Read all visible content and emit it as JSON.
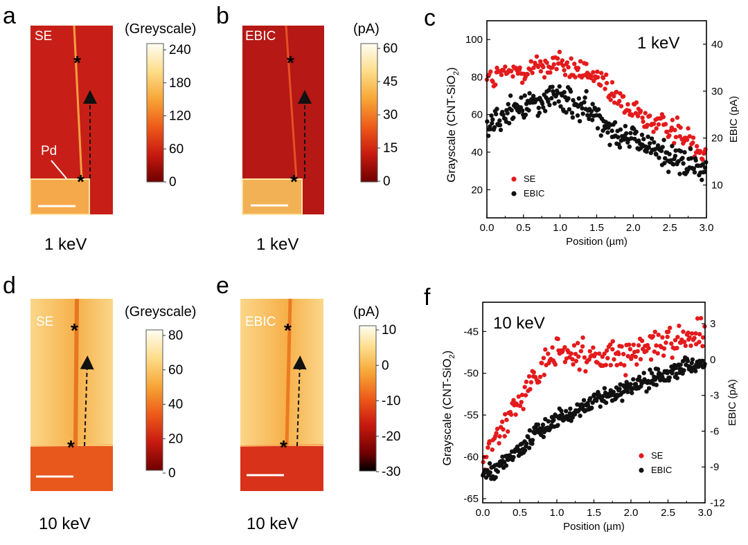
{
  "figure": {
    "panels": [
      {
        "id": "a",
        "letter": "a",
        "image_label": "SE",
        "energy": "1 keV",
        "colorbar_title": "(Greyscale)",
        "colorbar_ticks": [
          "240",
          "180",
          "120",
          "60",
          "0"
        ],
        "annotation": "Pd",
        "colorbar_colors": [
          "#6e0000",
          "#c81a10",
          "#ee5b1a",
          "#f7a636",
          "#fddd8a",
          "#fffdf3"
        ],
        "image_bg": "#c71f17"
      },
      {
        "id": "b",
        "letter": "b",
        "image_label": "EBIC",
        "energy": "1 keV",
        "colorbar_title": "(pA)",
        "colorbar_ticks": [
          "60",
          "45",
          "30",
          "15",
          "0"
        ],
        "colorbar_colors": [
          "#6e0000",
          "#c81a10",
          "#ee5b1a",
          "#f7a636",
          "#fddd8a",
          "#fffdf3"
        ],
        "image_bg": "#b51815"
      },
      {
        "id": "d",
        "letter": "d",
        "image_label": "SE",
        "energy": "10 keV",
        "colorbar_title": "(Greyscale)",
        "colorbar_ticks": [
          "80",
          "60",
          "40",
          "20",
          "0"
        ],
        "colorbar_colors": [
          "#6e0000",
          "#c81a10",
          "#ee5b1a",
          "#f7a636",
          "#fddd8a",
          "#fffdf3"
        ],
        "image_bg": "#f7b44a"
      },
      {
        "id": "e",
        "letter": "e",
        "image_label": "EBIC",
        "energy": "10 keV",
        "colorbar_title": "(pA)",
        "colorbar_ticks": [
          "10",
          "0",
          "-10",
          "-20",
          "-30"
        ],
        "colorbar_colors": [
          "#000000",
          "#6e0000",
          "#c81a10",
          "#ee5b1a",
          "#f7a636",
          "#fddd8a",
          "#fffdf3"
        ],
        "image_bg": "#f2a23e"
      }
    ],
    "colors": {
      "se": "#e41a1c",
      "ebic": "#111111"
    }
  },
  "chart_data": [
    {
      "id": "c",
      "letter": "c",
      "type": "scatter",
      "annotation": "1 keV",
      "xlabel": "Position (µm)",
      "ylabel": "Grayscale (CNT-SiO2)",
      "y2label": "EBIC (pA)",
      "xlim": [
        0,
        3
      ],
      "ylim": [
        5,
        110
      ],
      "y2lim": [
        3,
        45
      ],
      "xticks": [
        "0.0",
        "0.5",
        "1.0",
        "1.5",
        "2.0",
        "2.5",
        "3.0"
      ],
      "yticks": [
        "20",
        "40",
        "60",
        "80",
        "100"
      ],
      "y2ticks": [
        "10",
        "20",
        "30",
        "40"
      ],
      "legend": [
        "SE",
        "EBIC"
      ],
      "legend_position": "lower-left",
      "series": [
        {
          "name": "SE",
          "axis": "left",
          "n_points": 200,
          "trend": [
            [
              0,
              78
            ],
            [
              0.5,
              84
            ],
            [
              0.9,
              87
            ],
            [
              1.2,
              84
            ],
            [
              1.5,
              80
            ],
            [
              1.7,
              70
            ],
            [
              2.0,
              62
            ],
            [
              2.3,
              55
            ],
            [
              2.6,
              52
            ],
            [
              2.8,
              45
            ],
            [
              3.0,
              41
            ]
          ],
          "noise": 5
        },
        {
          "name": "EBIC",
          "axis": "right",
          "n_points": 270,
          "trend": [
            [
              0,
              23
            ],
            [
              0.5,
              27
            ],
            [
              0.9,
              29
            ],
            [
              1.2,
              27
            ],
            [
              1.5,
              25
            ],
            [
              1.8,
              21
            ],
            [
              2.1,
              19
            ],
            [
              2.4,
              17
            ],
            [
              2.7,
              14.5
            ],
            [
              3.0,
              13
            ]
          ],
          "noise": 2.2
        }
      ]
    },
    {
      "id": "f",
      "letter": "f",
      "type": "scatter",
      "annotation": "10 keV",
      "xlabel": "Position (µm)",
      "ylabel": "Grayscale (CNT-SiO2)",
      "y2label": "EBIC (pA)",
      "xlim": [
        0,
        3
      ],
      "ylim": [
        -65.5,
        -41.5
      ],
      "y2lim": [
        -12,
        4.8
      ],
      "xticks": [
        "0.0",
        "0.5",
        "1.0",
        "1.5",
        "2.0",
        "2.5",
        "3.0"
      ],
      "yticks": [
        "-45",
        "-50",
        "-55",
        "-60",
        "-65"
      ],
      "y2ticks": [
        "3",
        "0",
        "-3",
        "-6",
        "-9",
        "-12"
      ],
      "legend": [
        "SE",
        "EBIC"
      ],
      "legend_position": "lower-right",
      "series": [
        {
          "name": "SE",
          "axis": "left",
          "n_points": 200,
          "trend": [
            [
              0,
              -61
            ],
            [
              0.2,
              -58
            ],
            [
              0.5,
              -53
            ],
            [
              0.8,
              -49.5
            ],
            [
              1.0,
              -47.5
            ],
            [
              1.5,
              -48.2
            ],
            [
              2.0,
              -47.8
            ],
            [
              2.5,
              -46
            ],
            [
              3.0,
              -45.5
            ]
          ],
          "noise": 1.3
        },
        {
          "name": "EBIC",
          "axis": "right",
          "n_points": 300,
          "trend": [
            [
              0,
              -9.8
            ],
            [
              0.2,
              -9
            ],
            [
              0.5,
              -7.5
            ],
            [
              0.8,
              -5.8
            ],
            [
              1.0,
              -5
            ],
            [
              1.5,
              -3.6
            ],
            [
              2.0,
              -2.2
            ],
            [
              2.5,
              -1.2
            ],
            [
              3.0,
              -0.1
            ]
          ],
          "noise": 0.5
        }
      ]
    }
  ]
}
